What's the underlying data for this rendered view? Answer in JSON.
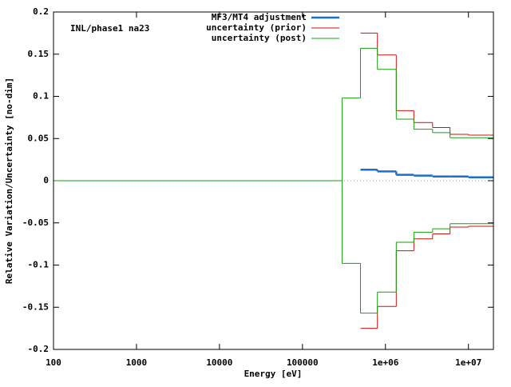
{
  "chart_data": {
    "type": "step",
    "annotation": "INL/phase1 na23",
    "xlabel": "Energy [eV]",
    "ylabel": "Relative Variation/Uncertainty [no-dim]",
    "x": [
      100,
      300000,
      500000,
      800000,
      1350000,
      2200000,
      3700000,
      6000000,
      10000000
    ],
    "xscale": "log",
    "xlim": [
      100,
      20000000
    ],
    "xticks": [
      100,
      1000,
      10000,
      100000,
      {
        "value": 1000000,
        "label": "1e+06"
      },
      {
        "value": 10000000,
        "label": "1e+07"
      }
    ],
    "ylim": [
      -0.2,
      0.2
    ],
    "yticks": [
      -0.2,
      -0.15,
      -0.1,
      -0.05,
      0,
      0.05,
      0.1,
      0.15,
      0.2
    ],
    "zero_line": true,
    "legend": "top",
    "series": [
      {
        "name": "MF3/MT4 adjustment",
        "color": "#1a6fd0",
        "values": [
          null,
          null,
          0.013,
          0.011,
          0.007,
          0.006,
          0.005,
          0.005,
          0.004
        ]
      },
      {
        "name": "uncertainty (prior)",
        "color": "#cc1111",
        "values": [
          null,
          null,
          0.175,
          0.149,
          0.083,
          0.069,
          0.063,
          0.055,
          0.054
        ]
      },
      {
        "name": "uncertainty (post)",
        "color": "#11a011",
        "values": [
          0,
          0.098,
          0.157,
          0.132,
          0.073,
          0.061,
          0.057,
          0.051,
          0.051
        ]
      },
      {
        "color": "#cc1111",
        "values": [
          null,
          null,
          -0.175,
          -0.149,
          -0.083,
          -0.069,
          -0.063,
          -0.055,
          -0.054
        ]
      },
      {
        "color": "#11a011",
        "values": [
          0,
          -0.098,
          -0.157,
          -0.132,
          -0.073,
          -0.061,
          -0.057,
          -0.051,
          -0.051
        ]
      }
    ]
  }
}
